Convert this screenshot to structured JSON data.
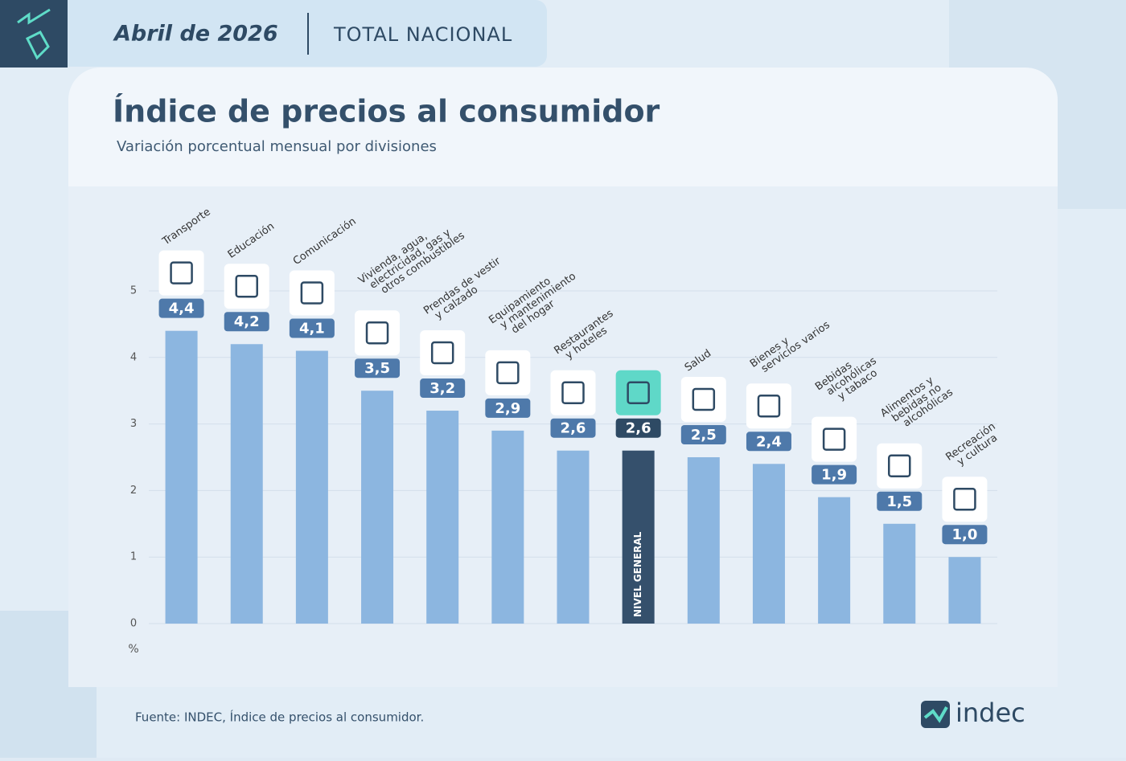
{
  "header": {
    "date": "Abril de 2026",
    "scope": "TOTAL NACIONAL"
  },
  "chart_data": {
    "type": "bar",
    "title": "Índice de precios al consumidor",
    "subtitle": "Variación porcentual mensual por divisiones",
    "y_unit": "%",
    "categories": [
      "Transporte",
      "Educación",
      "Comunicación",
      "Vivienda, agua,\nelectricidad, gas y\notros combustibles",
      "Prendas de vestir\ny calzado",
      "Equipamiento\ny mantenimiento\ndel hogar",
      "Restaurantes\ny hoteles",
      "NIVEL GENERAL",
      "Salud",
      "Bienes y\nservicios varios",
      "Bebidas\nalcohólicas\ny tabaco",
      "Alimentos y\nbebidas no\nalcohólicas",
      "Recreación\ny cultura"
    ],
    "values": [
      4.4,
      4.2,
      4.1,
      3.5,
      3.2,
      2.9,
      2.6,
      2.6,
      2.5,
      2.4,
      1.9,
      1.5,
      1.0
    ],
    "value_labels": [
      "4,4",
      "4,2",
      "4,1",
      "3,5",
      "3,2",
      "2,9",
      "2,6",
      "2,6",
      "2,5",
      "2,4",
      "1,9",
      "1,5",
      "1,0"
    ],
    "color": "#8cb6e0",
    "colors": [
      "#8cb6e0",
      "#8cb6e0",
      "#8cb6e0",
      "#8cb6e0",
      "#8cb6e0",
      "#8cb6e0",
      "#8cb6e0",
      "#35506c",
      "#8cb6e0",
      "#8cb6e0",
      "#8cb6e0",
      "#8cb6e0",
      "#8cb6e0"
    ],
    "ylim": [
      0,
      5
    ],
    "yticks": [
      0,
      1,
      2,
      3,
      4,
      5
    ],
    "grid": true
  },
  "footer": {
    "source": "Fuente: INDEC, Índice de precios al consumidor.",
    "logo": "indec"
  }
}
